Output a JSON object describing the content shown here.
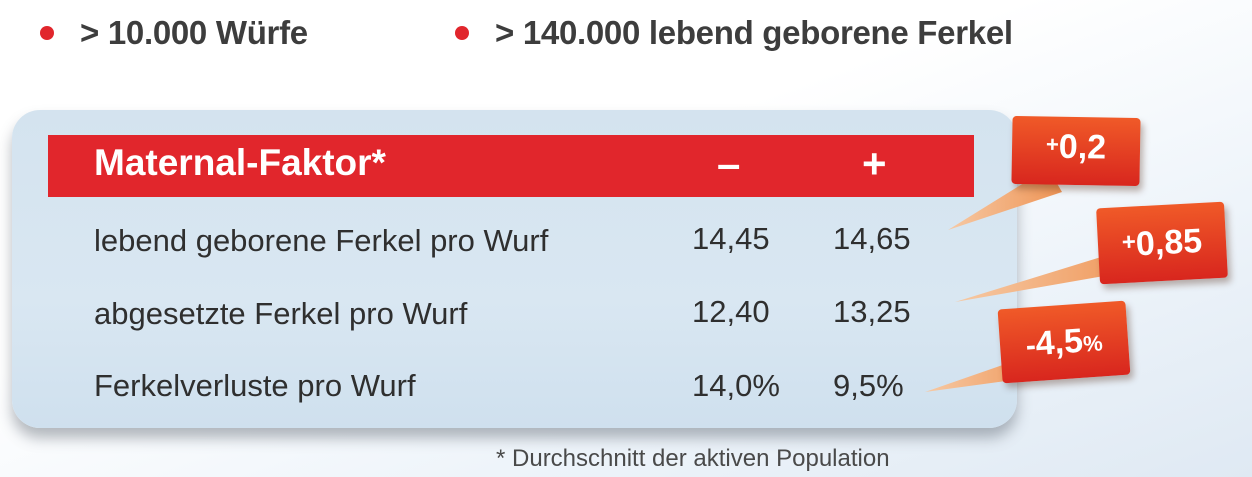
{
  "bullets": [
    "> 10.000 Würfe",
    "> 140.000 lebend geborene Ferkel"
  ],
  "table": {
    "title": "Maternal-Faktor*",
    "col_minus": "–",
    "col_plus": "+",
    "rows": [
      {
        "label": "lebend geborene Ferkel pro Wurf",
        "minus": "14,45",
        "plus": "14,65"
      },
      {
        "label": "abgesetzte Ferkel pro Wurf",
        "minus": "12,40",
        "plus": "13,25"
      },
      {
        "label": "Ferkelverluste pro Wurf",
        "minus": "14,0%",
        "plus": "9,5%"
      }
    ]
  },
  "badges": [
    {
      "sign": "+",
      "value": "0,2",
      "unit": ""
    },
    {
      "sign": "+",
      "value": "0,85",
      "unit": ""
    },
    {
      "sign": "-",
      "value": "4,5",
      "unit": "%"
    }
  ],
  "colors": {
    "accent_red": "#e1262c",
    "callout_orange": "#f08a4b"
  },
  "footnote": "* Durchschnitt der aktiven Population"
}
